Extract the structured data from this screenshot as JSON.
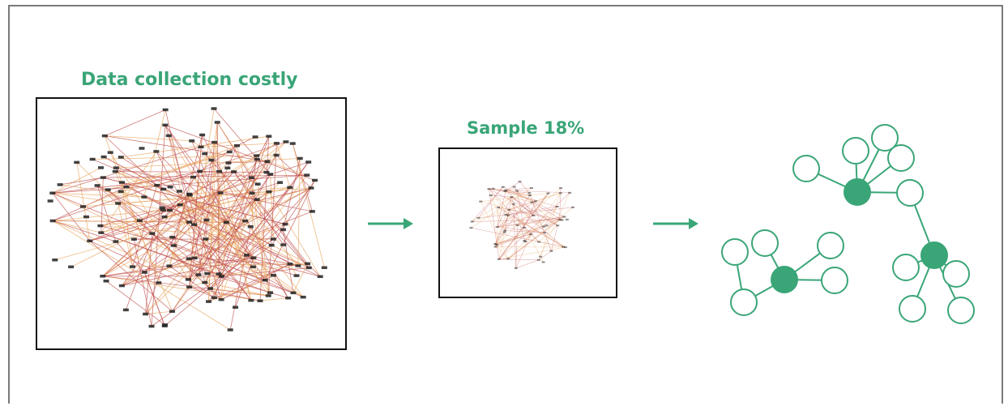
{
  "captions": {
    "full_network": "Data collection costly",
    "sample": "Sample 18%"
  },
  "colors": {
    "accent_green": "#3aa577",
    "frame_border": "#7a7a7a",
    "panel_border": "#111111",
    "edge_red": "#c0504d",
    "edge_orange": "#e8a35a"
  },
  "icons": {
    "flow_arrow_1": "right-arrow-icon",
    "flow_arrow_2": "right-arrow-icon"
  }
}
